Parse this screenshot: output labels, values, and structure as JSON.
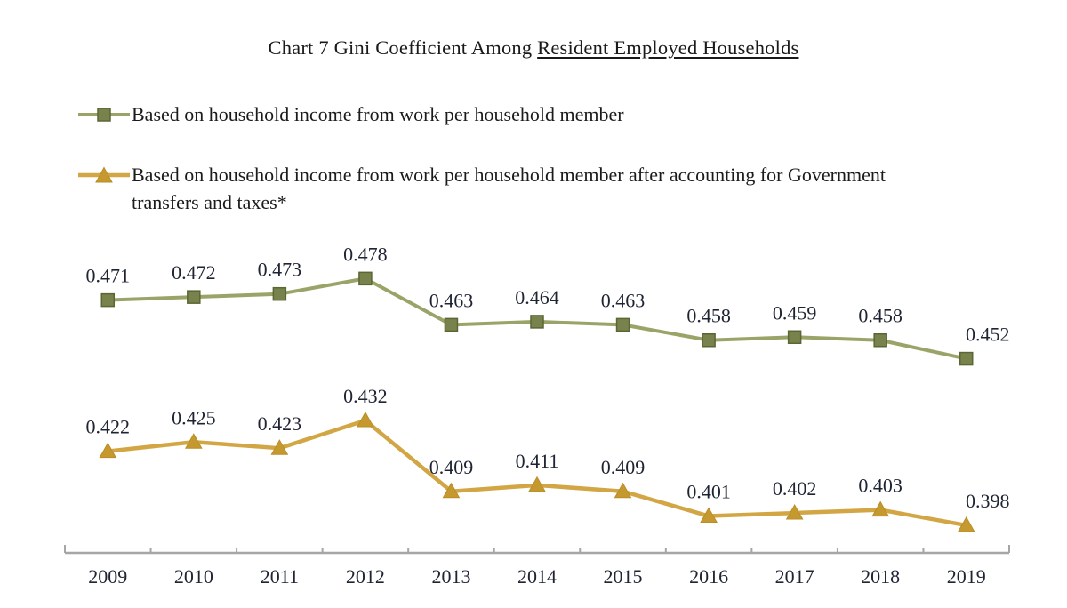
{
  "title": {
    "prefix": "Chart 7 Gini Coefficient Among",
    "underlined": "Resident Employed Households"
  },
  "legend": {
    "items": [
      {
        "marker": "square",
        "label": "Based on household income from work per household member"
      },
      {
        "marker": "triangle",
        "label_line1": "Based on household income from work per household member after accounting for Government",
        "label_line2": "transfers and taxes*"
      }
    ]
  },
  "colors": {
    "series1_line": "#9aa468",
    "series1_marker": "#78824c",
    "series1_marker_stroke": "#5a6634",
    "series2_line": "#d2a644",
    "series2_marker": "#c5992f",
    "series2_marker_stroke": "#b98e26",
    "axis": "#a6a6a6",
    "label_text": "#1f2433",
    "title_text": "#1a1a1a"
  },
  "chart_data": {
    "type": "line",
    "title": "Chart 7 Gini Coefficient Among Resident Employed Households",
    "xlabel": "",
    "ylabel": "",
    "grid": false,
    "data_labels": true,
    "legend_position": "top-left",
    "ylim": [
      0.39,
      0.49
    ],
    "categories": [
      "2009",
      "2010",
      "2011",
      "2012",
      "2013",
      "2014",
      "2015",
      "2016",
      "2017",
      "2018",
      "2019"
    ],
    "series": [
      {
        "name": "Based on household income from work per household member",
        "marker": "square",
        "color": "#9aa468",
        "values": [
          0.471,
          0.472,
          0.473,
          0.478,
          0.463,
          0.464,
          0.463,
          0.458,
          0.459,
          0.458,
          0.452
        ]
      },
      {
        "name": "Based on household income from work per household member after accounting for Government transfers and taxes*",
        "marker": "triangle",
        "color": "#d2a644",
        "values": [
          0.422,
          0.425,
          0.423,
          0.432,
          0.409,
          0.411,
          0.409,
          0.401,
          0.402,
          0.403,
          0.398
        ]
      }
    ]
  }
}
